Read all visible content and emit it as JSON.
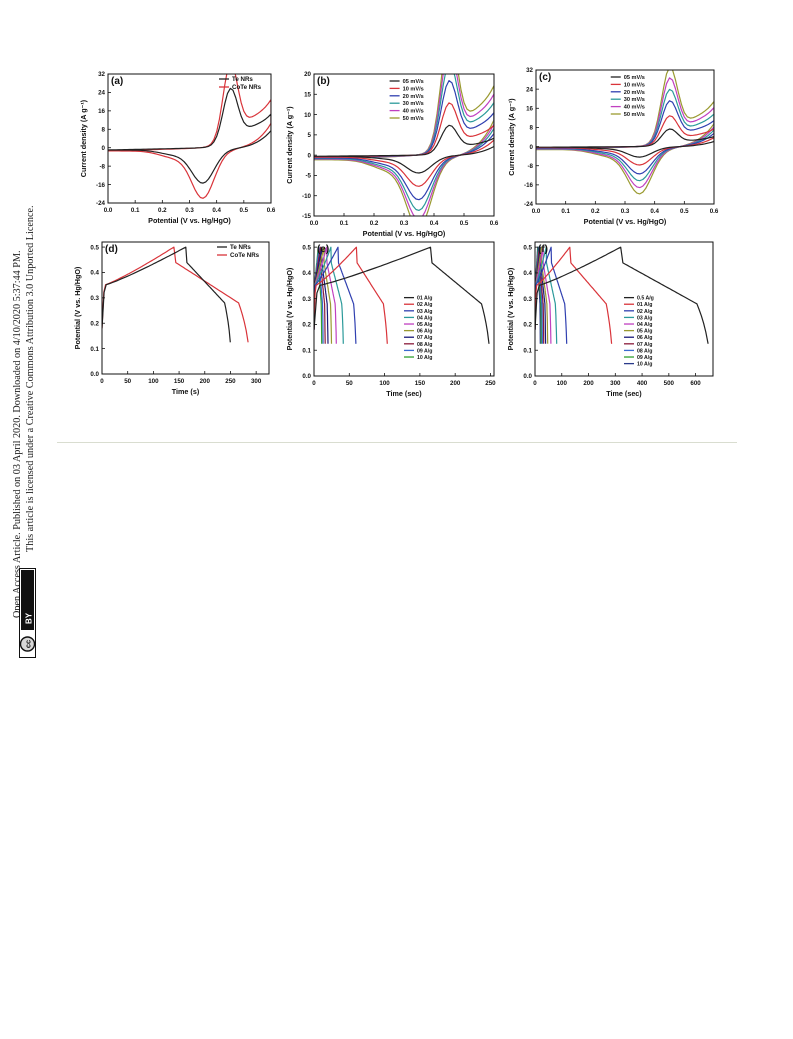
{
  "margin_notice": {
    "line1": "Open Access Article. Published on 03 April 2020. Downloaded on 4/10/2020 5:37:44 PM.",
    "line2": "This article is licensed under a Creative Commons Attribution 3.0 Unported Licence.",
    "badge_cc": "cc",
    "badge_by": "BY"
  },
  "chart_data": [
    {
      "id": "a",
      "type": "line",
      "panel_label": "(a)",
      "xlabel": "Potential (V vs. Hg/HgO)",
      "ylabel": "Current density (A g⁻¹)",
      "xlim": [
        0.0,
        0.6
      ],
      "ylim": [
        -24,
        32
      ],
      "xticks": [
        0.0,
        0.1,
        0.2,
        0.3,
        0.4,
        0.5,
        0.6
      ],
      "xtick_labels": [
        "0.0",
        "0.1",
        "0.2",
        "0.3",
        "0.4",
        "0.5",
        "0.6"
      ],
      "yticks": [
        -24,
        -16,
        -8,
        0,
        8,
        16,
        24,
        32
      ],
      "ytick_labels": [
        "-24",
        "-16",
        "-8",
        "0",
        "8",
        "16",
        "24",
        "32"
      ],
      "legend_position": "top-right",
      "series": [
        {
          "name": "Te NRs",
          "color": "#222222",
          "kind": "cv",
          "scale": 0.7
        },
        {
          "name": "CoTe NRs",
          "color": "#d9343a",
          "kind": "cv",
          "scale": 1.0
        }
      ]
    },
    {
      "id": "b",
      "type": "line",
      "panel_label": "(b)",
      "xlabel": "Potential (V vs. Hg/HgO)",
      "ylabel": "Current density (A g⁻¹)",
      "xlim": [
        0.0,
        0.6
      ],
      "ylim": [
        -15,
        20
      ],
      "xticks": [
        0.0,
        0.1,
        0.2,
        0.3,
        0.4,
        0.5,
        0.6
      ],
      "xtick_labels": [
        "0.0",
        "0.1",
        "0.2",
        "0.3",
        "0.4",
        "0.5",
        "0.6"
      ],
      "yticks": [
        -15,
        -10,
        -5,
        0,
        5,
        10,
        15,
        20
      ],
      "ytick_labels": [
        "-15",
        "-10",
        "-5",
        "0",
        "5",
        "10",
        "15",
        "20"
      ],
      "legend_position": "top-center",
      "series": [
        {
          "name": "05 mV/s",
          "color": "#222222",
          "kind": "cv",
          "scale": 0.2
        },
        {
          "name": "10 mV/s",
          "color": "#d9343a",
          "kind": "cv",
          "scale": 0.35
        },
        {
          "name": "20 mV/s",
          "color": "#3040b0",
          "kind": "cv",
          "scale": 0.5
        },
        {
          "name": "30 mV/s",
          "color": "#2b9a9a",
          "kind": "cv",
          "scale": 0.62
        },
        {
          "name": "40 mV/s",
          "color": "#c040c0",
          "kind": "cv",
          "scale": 0.72
        },
        {
          "name": "50 mV/s",
          "color": "#9a9a30",
          "kind": "cv",
          "scale": 0.82
        }
      ]
    },
    {
      "id": "c",
      "type": "line",
      "panel_label": "(c)",
      "xlabel": "Potential (V vs. Hg/HgO)",
      "ylabel": "Current density (A g⁻¹)",
      "xlim": [
        0.0,
        0.6
      ],
      "ylim": [
        -24,
        32
      ],
      "xticks": [
        0.0,
        0.1,
        0.2,
        0.3,
        0.4,
        0.5,
        0.6
      ],
      "xtick_labels": [
        "0.0",
        "0.1",
        "0.2",
        "0.3",
        "0.4",
        "0.5",
        "0.6"
      ],
      "yticks": [
        -24,
        -16,
        -8,
        0,
        8,
        16,
        24,
        32
      ],
      "ytick_labels": [
        "-24",
        "-16",
        "-8",
        "0",
        "8",
        "16",
        "24",
        "32"
      ],
      "legend_position": "top-center",
      "series": [
        {
          "name": "05 mV/s",
          "color": "#222222",
          "kind": "cv",
          "scale": 0.2
        },
        {
          "name": "10 mV/s",
          "color": "#d9343a",
          "kind": "cv",
          "scale": 0.35
        },
        {
          "name": "20 mV/s",
          "color": "#3040b0",
          "kind": "cv",
          "scale": 0.52
        },
        {
          "name": "30 mV/s",
          "color": "#2b9a9a",
          "kind": "cv",
          "scale": 0.65
        },
        {
          "name": "40 mV/s",
          "color": "#c040c0",
          "kind": "cv",
          "scale": 0.78
        },
        {
          "name": "50 mV/s",
          "color": "#9a9a30",
          "kind": "cv",
          "scale": 0.9
        }
      ]
    },
    {
      "id": "d",
      "type": "line",
      "panel_label": "(d)",
      "xlabel": "Time (s)",
      "ylabel": "Potential (V vs. Hg/HgO)",
      "xlim": [
        0,
        325
      ],
      "ylim": [
        0.0,
        0.52
      ],
      "xticks": [
        0,
        50,
        100,
        150,
        200,
        250,
        300
      ],
      "xtick_labels": [
        "0",
        "50",
        "100",
        "150",
        "200",
        "250",
        "300"
      ],
      "yticks": [
        0.0,
        0.1,
        0.2,
        0.3,
        0.4,
        0.5
      ],
      "ytick_labels": [
        "0.0",
        "0.1",
        "0.2",
        "0.3",
        "0.4",
        "0.5"
      ],
      "legend_position": "top-right",
      "series": [
        {
          "name": "Te NRs",
          "color": "#222222",
          "kind": "gcd",
          "charge_end": 163,
          "discharge_end": 252
        },
        {
          "name": "CoTe NRs",
          "color": "#d9343a",
          "kind": "gcd",
          "charge_end": 140,
          "discharge_end": 288
        }
      ]
    },
    {
      "id": "e",
      "type": "line",
      "panel_label": "(e)",
      "xlabel": "Time (sec)",
      "ylabel": "Potential (V vs. Hg/HgO)",
      "xlim": [
        0,
        255
      ],
      "ylim": [
        0.0,
        0.52
      ],
      "xticks": [
        0,
        50,
        100,
        150,
        200,
        250
      ],
      "xtick_labels": [
        "0",
        "50",
        "100",
        "150",
        "200",
        "250"
      ],
      "yticks": [
        0.0,
        0.1,
        0.2,
        0.3,
        0.4,
        0.5
      ],
      "ytick_labels": [
        "0.0",
        "0.1",
        "0.2",
        "0.3",
        "0.4",
        "0.5"
      ],
      "legend_position": "center-right",
      "series": [
        {
          "name": "01 A/g",
          "color": "#222222",
          "kind": "gcd",
          "charge_end": 165,
          "discharge_end": 250
        },
        {
          "name": "02 A/g",
          "color": "#d9343a",
          "kind": "gcd",
          "charge_end": 60,
          "discharge_end": 105
        },
        {
          "name": "03 A/g",
          "color": "#3040b0",
          "kind": "gcd",
          "charge_end": 34,
          "discharge_end": 60
        },
        {
          "name": "04 A/g",
          "color": "#2b9a9a",
          "kind": "gcd",
          "charge_end": 24,
          "discharge_end": 42
        },
        {
          "name": "05 A/g",
          "color": "#c040c0",
          "kind": "gcd",
          "charge_end": 18,
          "discharge_end": 32
        },
        {
          "name": "06 A/g",
          "color": "#9a9a30",
          "kind": "gcd",
          "charge_end": 14,
          "discharge_end": 25
        },
        {
          "name": "07 A/g",
          "color": "#1a1a7a",
          "kind": "gcd",
          "charge_end": 11,
          "discharge_end": 20
        },
        {
          "name": "08 A/g",
          "color": "#8a1a3a",
          "kind": "gcd",
          "charge_end": 9,
          "discharge_end": 16
        },
        {
          "name": "09 A/g",
          "color": "#3a6ad0",
          "kind": "gcd",
          "charge_end": 7,
          "discharge_end": 13
        },
        {
          "name": "10 A/g",
          "color": "#30a030",
          "kind": "gcd",
          "charge_end": 6,
          "discharge_end": 11
        }
      ]
    },
    {
      "id": "f",
      "type": "line",
      "panel_label": "(f)",
      "xlabel": "Time (sec)",
      "ylabel": "Potential (V vs. Hg/HgO)",
      "xlim": [
        0,
        665
      ],
      "ylim": [
        0.0,
        0.52
      ],
      "xticks": [
        0,
        100,
        200,
        300,
        400,
        500,
        600
      ],
      "xtick_labels": [
        "0",
        "100",
        "200",
        "300",
        "400",
        "500",
        "600"
      ],
      "yticks": [
        0.0,
        0.1,
        0.2,
        0.3,
        0.4,
        0.5
      ],
      "ytick_labels": [
        "0.0",
        "0.1",
        "0.2",
        "0.3",
        "0.4",
        "0.5"
      ],
      "legend_position": "center-right",
      "series": [
        {
          "name": "0.5 A/g",
          "color": "#222222",
          "kind": "gcd",
          "charge_end": 320,
          "discharge_end": 655
        },
        {
          "name": "01 A/g",
          "color": "#d9343a",
          "kind": "gcd",
          "charge_end": 130,
          "discharge_end": 290
        },
        {
          "name": "02 A/g",
          "color": "#3040b0",
          "kind": "gcd",
          "charge_end": 60,
          "discharge_end": 120
        },
        {
          "name": "03 A/g",
          "color": "#2b9a9a",
          "kind": "gcd",
          "charge_end": 42,
          "discharge_end": 82
        },
        {
          "name": "04 A/g",
          "color": "#c040c0",
          "kind": "gcd",
          "charge_end": 30,
          "discharge_end": 60
        },
        {
          "name": "05 A/g",
          "color": "#9a9a30",
          "kind": "gcd",
          "charge_end": 24,
          "discharge_end": 48
        },
        {
          "name": "06 A/g",
          "color": "#1a1a7a",
          "kind": "gcd",
          "charge_end": 20,
          "discharge_end": 40
        },
        {
          "name": "07 A/g",
          "color": "#8a1a3a",
          "kind": "gcd",
          "charge_end": 16,
          "discharge_end": 33
        },
        {
          "name": "08 A/g",
          "color": "#3a6ad0",
          "kind": "gcd",
          "charge_end": 14,
          "discharge_end": 28
        },
        {
          "name": "09 A/g",
          "color": "#30a030",
          "kind": "gcd",
          "charge_end": 12,
          "discharge_end": 24
        },
        {
          "name": "10 A/g",
          "color": "#2a3a8a",
          "kind": "gcd",
          "charge_end": 10,
          "discharge_end": 20
        }
      ]
    }
  ]
}
